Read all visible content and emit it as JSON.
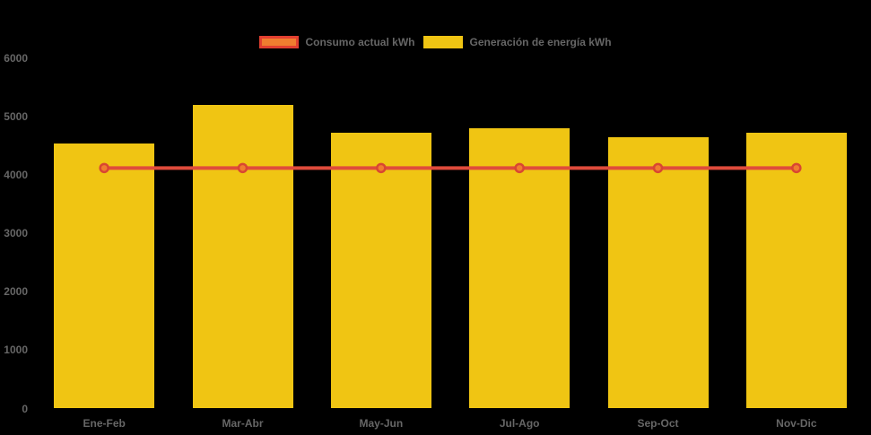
{
  "colors": {
    "background": "#000000",
    "bar_fill": "#f0c513",
    "line_stroke": "#df4b3b",
    "marker_fill": "#f07d2f",
    "marker_stroke": "#d94632",
    "text": "#666666"
  },
  "legend": {
    "items": [
      {
        "label": "Consumo actual kWh",
        "swatch": "line-series",
        "swatch_fill": "#f07d2f",
        "swatch_border": "#e23f30"
      },
      {
        "label": "Generación de energía kWh",
        "swatch": "bar-series",
        "swatch_fill": "#f0c513",
        "swatch_border": "#f0c513"
      }
    ]
  },
  "chart_data": {
    "type": "bar",
    "categories": [
      "Ene-Feb",
      "Mar-Abr",
      "May-Jun",
      "Jul-Ago",
      "Sep-Oct",
      "Nov-Dic"
    ],
    "series": [
      {
        "name": "Consumo actual kWh",
        "type": "line",
        "values": [
          4120,
          4120,
          4120,
          4120,
          4120,
          4120
        ]
      },
      {
        "name": "Generación de energía kWh",
        "type": "bar",
        "values": [
          4540,
          5200,
          4730,
          4800,
          4650,
          4730
        ]
      }
    ],
    "title": "",
    "xlabel": "",
    "ylabel": "",
    "ylim": [
      0,
      6000
    ],
    "y_ticks": [
      0,
      1000,
      2000,
      3000,
      4000,
      5000,
      6000
    ],
    "grid": false,
    "legend_position": "top"
  }
}
